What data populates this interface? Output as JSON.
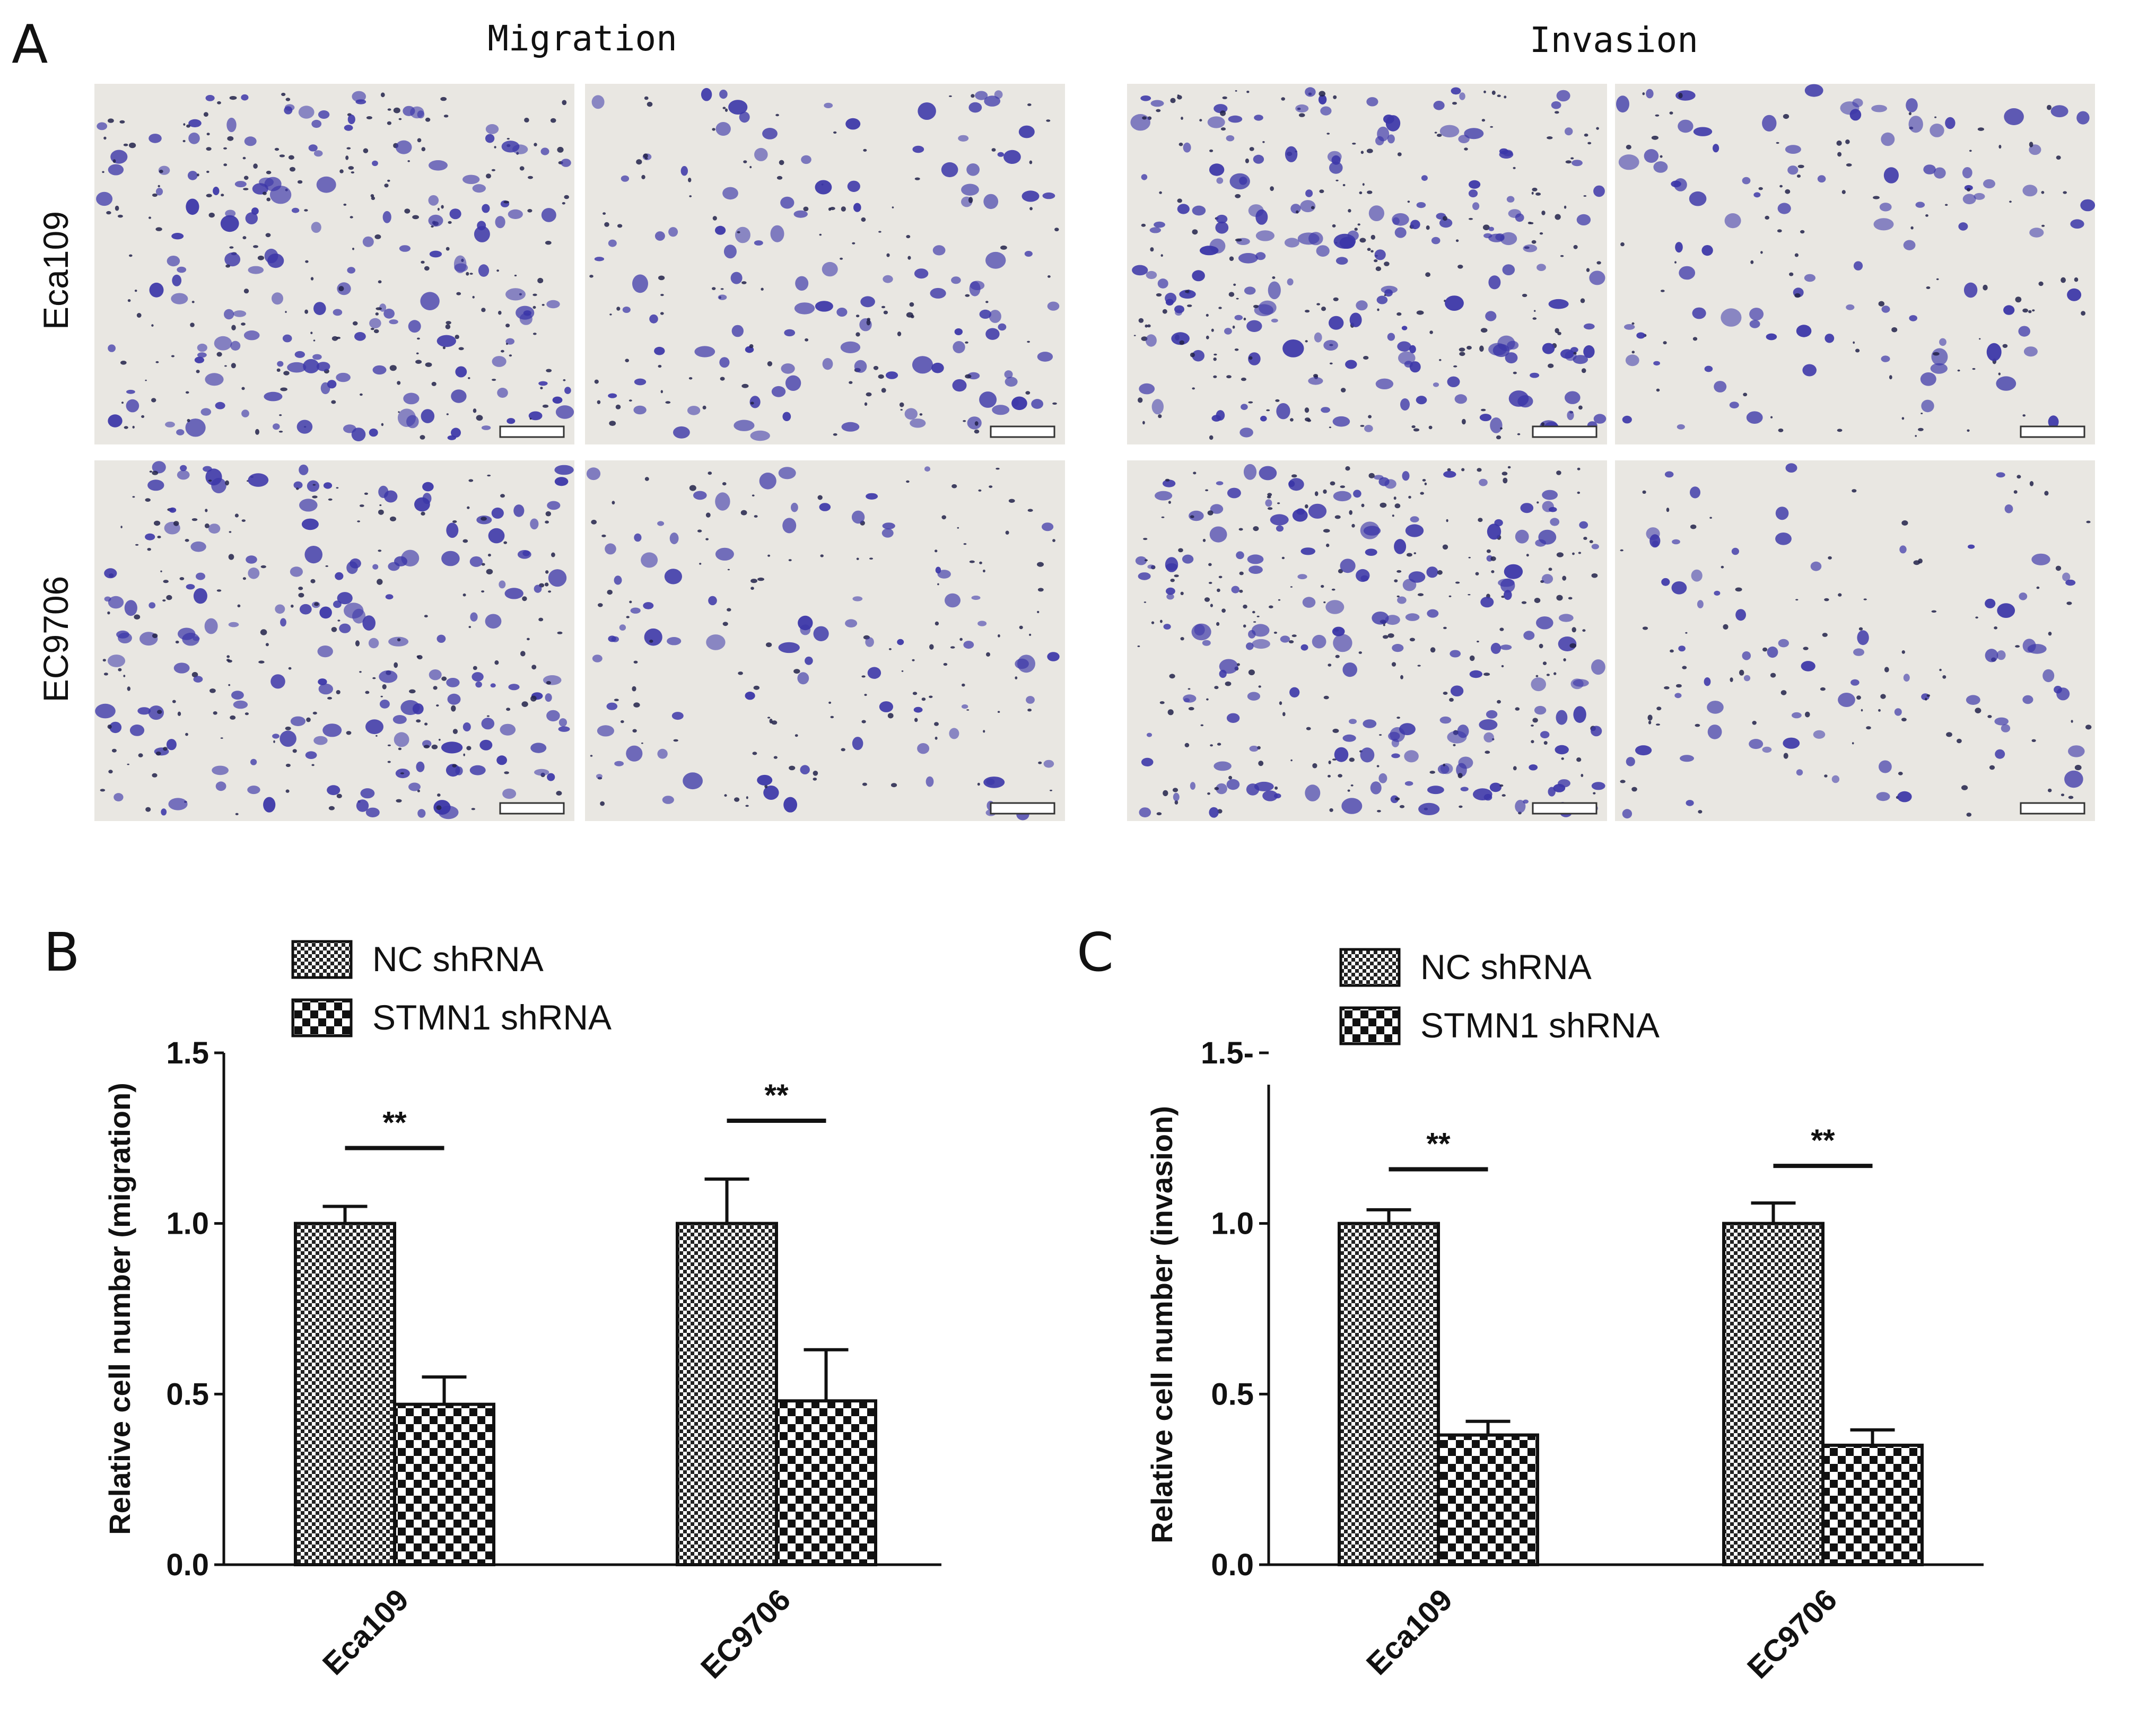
{
  "panel_labels": {
    "a": "A",
    "b": "B",
    "c": "C"
  },
  "micrographs": {
    "column_titles": [
      "Migration",
      "Invasion"
    ],
    "row_labels": [
      "Eca109",
      "EC9706"
    ],
    "colors": {
      "cell": "#3b36a8",
      "background": "#e9e7e2"
    }
  },
  "chart_data": [
    {
      "type": "bar",
      "categories": [
        "Eca109",
        "EC9706"
      ],
      "series": [
        {
          "name": "NC shRNA",
          "values": [
            1.0,
            1.0
          ],
          "errors": [
            0.05,
            0.13
          ]
        },
        {
          "name": "STMN1 shRNA",
          "values": [
            0.47,
            0.48
          ],
          "errors": [
            0.08,
            0.15
          ]
        }
      ],
      "significance": [
        "**",
        "**"
      ],
      "ylabel": "Relative cell number (migration)",
      "ylim": [
        0,
        1.5
      ],
      "yticks": [
        "0.0",
        "0.5",
        "1.0",
        "1.5"
      ],
      "legend": "top"
    },
    {
      "type": "bar",
      "categories": [
        "Eca109",
        "EC9706"
      ],
      "series": [
        {
          "name": "NC shRNA",
          "values": [
            1.0,
            1.0
          ],
          "errors": [
            0.04,
            0.06
          ]
        },
        {
          "name": "STMN1 shRNA",
          "values": [
            0.38,
            0.35
          ],
          "errors": [
            0.04,
            0.045
          ]
        }
      ],
      "significance": [
        "**",
        "**"
      ],
      "ylabel": "Relative cell number (invasion)",
      "ylim": [
        0,
        1.5
      ],
      "yticks": [
        "0.0",
        "0.5",
        "1.0",
        "1.5-"
      ],
      "legend": "top"
    }
  ]
}
